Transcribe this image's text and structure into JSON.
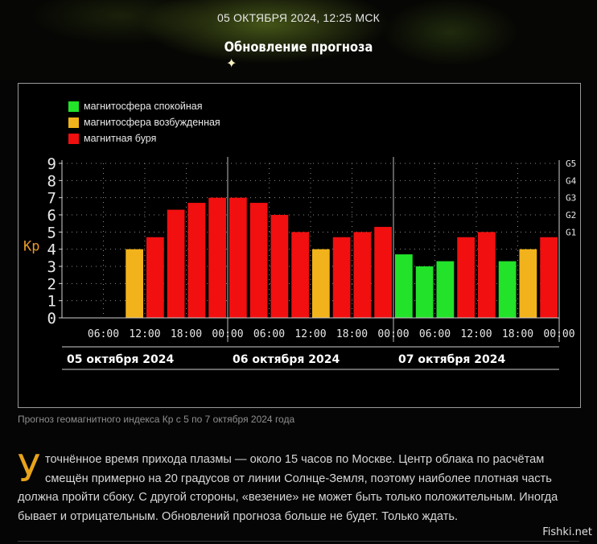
{
  "header": {
    "datetime": "05 ОКТЯБРЯ 2024, 12:25 МСК",
    "title": "Обновление прогноза"
  },
  "chart_data": {
    "type": "bar",
    "legend": [
      {
        "label": "магнитосфера спокойная",
        "color": "#22e22a"
      },
      {
        "label": "магнитосфера возбужденная",
        "color": "#f2b21b"
      },
      {
        "label": "магнитная буря",
        "color": "#f10f0f"
      }
    ],
    "ylabel": "Kp",
    "ylim": [
      0,
      9
    ],
    "yticks": [
      "0",
      "1",
      "2",
      "3",
      "4",
      "5",
      "6",
      "7",
      "8",
      "9"
    ],
    "g_levels": [
      {
        "label": "G1",
        "kp": 5
      },
      {
        "label": "G2",
        "kp": 6
      },
      {
        "label": "G3",
        "kp": 7
      },
      {
        "label": "G4",
        "kp": 8
      },
      {
        "label": "G5",
        "kp": 9
      }
    ],
    "time_labels": [
      "06:00",
      "12:00",
      "18:00",
      "00:00",
      "06:00",
      "12:00",
      "18:00",
      "00:00",
      "06:00",
      "12:00",
      "18:00",
      "00:00"
    ],
    "day_labels": [
      "05 октября 2024",
      "06 октября 2024",
      "07 октября 2024"
    ],
    "grid": true,
    "bars": [
      {
        "interval": 0,
        "kp": null,
        "level": null
      },
      {
        "interval": 1,
        "kp": null,
        "level": null
      },
      {
        "interval": 2,
        "kp": null,
        "level": null
      },
      {
        "interval": 3,
        "kp": 4.0,
        "level": "excited"
      },
      {
        "interval": 4,
        "kp": 4.7,
        "level": "storm"
      },
      {
        "interval": 5,
        "kp": 6.3,
        "level": "storm"
      },
      {
        "interval": 6,
        "kp": 6.7,
        "level": "storm"
      },
      {
        "interval": 7,
        "kp": 7.0,
        "level": "storm"
      },
      {
        "interval": 8,
        "kp": 7.0,
        "level": "storm"
      },
      {
        "interval": 9,
        "kp": 6.7,
        "level": "storm"
      },
      {
        "interval": 10,
        "kp": 6.0,
        "level": "storm"
      },
      {
        "interval": 11,
        "kp": 5.0,
        "level": "storm"
      },
      {
        "interval": 12,
        "kp": 4.0,
        "level": "excited"
      },
      {
        "interval": 13,
        "kp": 4.7,
        "level": "storm"
      },
      {
        "interval": 14,
        "kp": 5.0,
        "level": "storm"
      },
      {
        "interval": 15,
        "kp": 5.3,
        "level": "storm"
      },
      {
        "interval": 16,
        "kp": 3.7,
        "level": "calm"
      },
      {
        "interval": 17,
        "kp": 3.0,
        "level": "calm"
      },
      {
        "interval": 18,
        "kp": 3.3,
        "level": "calm"
      },
      {
        "interval": 19,
        "kp": 4.7,
        "level": "storm"
      },
      {
        "interval": 20,
        "kp": 5.0,
        "level": "storm"
      },
      {
        "interval": 21,
        "kp": 3.3,
        "level": "calm"
      },
      {
        "interval": 22,
        "kp": 4.0,
        "level": "excited"
      },
      {
        "interval": 23,
        "kp": 4.7,
        "level": "storm"
      }
    ],
    "level_colors": {
      "calm": "#22e22a",
      "excited": "#f2b21b",
      "storm": "#f10f0f"
    }
  },
  "caption": "Прогноз геомагнитного индекса Кр с 5 по 7 октября 2024 года",
  "article": {
    "dropcap": "У",
    "text": "точнённое время прихода плазмы — около 15 часов по Москве. Центр облака по расчётам смещён примерно на 20 градусов от линии Солнце-Земля, поэтому наиболее плотная часть должна пройти сбоку. С другой стороны, «везение» не может быть только положительным. Иногда бывает и отрицательным. Обновлений прогноза больше не будет. Только ждать."
  },
  "watermark": "Fishki.net"
}
